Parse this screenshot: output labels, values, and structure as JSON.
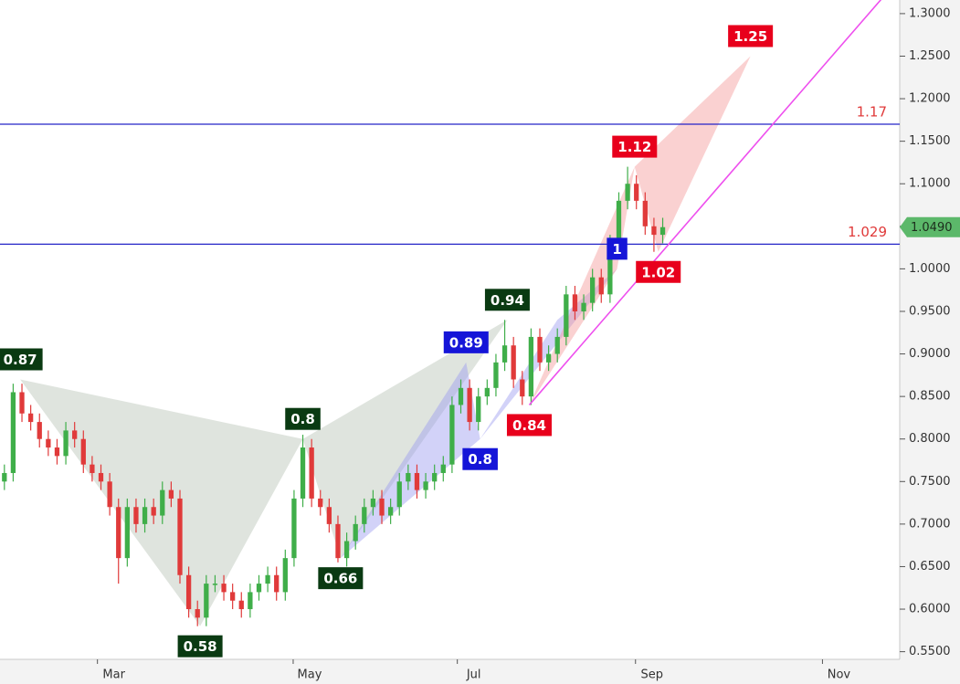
{
  "chart_data": {
    "type": "candlestick",
    "up_color": "#3fae49",
    "down_color": "#e03a3a",
    "xlim": [
      -0.5,
      102
    ],
    "ylim": [
      0.541,
      1.316
    ],
    "xticks": [
      {
        "value": 10.6,
        "label": "Mar"
      },
      {
        "value": 32.9,
        "label": "May"
      },
      {
        "value": 51.6,
        "label": "Jul"
      },
      {
        "value": 71.9,
        "label": "Sep"
      },
      {
        "value": 93.2,
        "label": "Nov"
      }
    ],
    "yticks": [
      {
        "value": 1.3,
        "label": "1.3000"
      },
      {
        "value": 1.25,
        "label": "1.2500"
      },
      {
        "value": 1.2,
        "label": "1.2000"
      },
      {
        "value": 1.15,
        "label": "1.1500"
      },
      {
        "value": 1.1,
        "label": "1.1000"
      },
      {
        "value": 1.05,
        "label": "1.0500"
      },
      {
        "value": 1.0,
        "label": "1.0000"
      },
      {
        "value": 0.95,
        "label": "0.9500"
      },
      {
        "value": 0.9,
        "label": "0.9000"
      },
      {
        "value": 0.85,
        "label": "0.8500"
      },
      {
        "value": 0.8,
        "label": "0.8000"
      },
      {
        "value": 0.75,
        "label": "0.7500"
      },
      {
        "value": 0.7,
        "label": "0.7000"
      },
      {
        "value": 0.65,
        "label": "0.6500"
      },
      {
        "value": 0.6,
        "label": "0.6000"
      },
      {
        "value": 0.55,
        "label": "0.5500"
      }
    ],
    "open": [
      0.75,
      0.76,
      0.855,
      0.83,
      0.82,
      0.8,
      0.79,
      0.78,
      0.81,
      0.8,
      0.77,
      0.76,
      0.75,
      0.72,
      0.66,
      0.72,
      0.7,
      0.72,
      0.71,
      0.74,
      0.73,
      0.64,
      0.6,
      0.59,
      0.63,
      0.63,
      0.62,
      0.61,
      0.6,
      0.62,
      0.63,
      0.64,
      0.62,
      0.66,
      0.73,
      0.79,
      0.73,
      0.72,
      0.7,
      0.66,
      0.68,
      0.7,
      0.72,
      0.73,
      0.71,
      0.72,
      0.75,
      0.76,
      0.74,
      0.75,
      0.76,
      0.77,
      0.84,
      0.86,
      0.82,
      0.85,
      0.86,
      0.89,
      0.91,
      0.87,
      0.85,
      0.92,
      0.89,
      0.9,
      0.92,
      0.97,
      0.95,
      0.96,
      0.99,
      0.97,
      1.03,
      1.08,
      1.1,
      1.08,
      1.05,
      1.04
    ],
    "high": [
      0.77,
      0.865,
      0.865,
      0.84,
      0.83,
      0.81,
      0.8,
      0.82,
      0.82,
      0.81,
      0.78,
      0.77,
      0.76,
      0.73,
      0.73,
      0.73,
      0.73,
      0.73,
      0.75,
      0.75,
      0.74,
      0.65,
      0.61,
      0.64,
      0.64,
      0.64,
      0.63,
      0.62,
      0.63,
      0.64,
      0.65,
      0.65,
      0.67,
      0.74,
      0.805,
      0.8,
      0.74,
      0.73,
      0.71,
      0.69,
      0.71,
      0.73,
      0.74,
      0.74,
      0.73,
      0.76,
      0.77,
      0.77,
      0.76,
      0.77,
      0.78,
      0.85,
      0.87,
      0.87,
      0.86,
      0.87,
      0.9,
      0.94,
      0.92,
      0.88,
      0.93,
      0.93,
      0.91,
      0.93,
      0.98,
      0.98,
      0.97,
      1.0,
      1.0,
      1.04,
      1.09,
      1.12,
      1.11,
      1.09,
      1.06,
      1.06
    ],
    "low": [
      0.74,
      0.75,
      0.82,
      0.81,
      0.79,
      0.78,
      0.77,
      0.77,
      0.79,
      0.76,
      0.75,
      0.74,
      0.71,
      0.63,
      0.65,
      0.69,
      0.69,
      0.7,
      0.7,
      0.72,
      0.63,
      0.59,
      0.58,
      0.58,
      0.62,
      0.61,
      0.6,
      0.59,
      0.59,
      0.61,
      0.62,
      0.61,
      0.61,
      0.65,
      0.72,
      0.72,
      0.71,
      0.69,
      0.655,
      0.65,
      0.67,
      0.69,
      0.71,
      0.7,
      0.7,
      0.71,
      0.74,
      0.73,
      0.73,
      0.74,
      0.75,
      0.76,
      0.83,
      0.81,
      0.81,
      0.84,
      0.85,
      0.88,
      0.86,
      0.84,
      0.84,
      0.88,
      0.88,
      0.89,
      0.91,
      0.94,
      0.94,
      0.95,
      0.96,
      0.96,
      1.02,
      1.07,
      1.07,
      1.04,
      1.02,
      1.03
    ],
    "close": [
      0.76,
      0.855,
      0.83,
      0.82,
      0.8,
      0.79,
      0.78,
      0.81,
      0.8,
      0.77,
      0.76,
      0.75,
      0.72,
      0.66,
      0.72,
      0.7,
      0.72,
      0.71,
      0.74,
      0.73,
      0.64,
      0.6,
      0.59,
      0.63,
      0.63,
      0.62,
      0.61,
      0.6,
      0.62,
      0.63,
      0.64,
      0.62,
      0.66,
      0.73,
      0.79,
      0.73,
      0.72,
      0.7,
      0.66,
      0.68,
      0.7,
      0.72,
      0.73,
      0.71,
      0.72,
      0.75,
      0.76,
      0.74,
      0.75,
      0.76,
      0.77,
      0.84,
      0.86,
      0.82,
      0.85,
      0.86,
      0.89,
      0.91,
      0.87,
      0.85,
      0.92,
      0.89,
      0.9,
      0.92,
      0.97,
      0.95,
      0.96,
      0.99,
      0.97,
      1.03,
      1.08,
      1.1,
      1.08,
      1.05,
      1.04,
      1.049
    ],
    "patterns": [
      {
        "fill": "#b7c4b5",
        "points": [
          {
            "x": 1.8,
            "value": 0.87,
            "color": "#0a3a12"
          },
          {
            "x": 22.3,
            "value": 0.58,
            "color": "#0a3a12"
          },
          {
            "x": 34,
            "value": 0.8,
            "color": "#0a3a12"
          },
          {
            "x": 38.3,
            "value": 0.66,
            "color": "#0a3a12"
          },
          {
            "x": 57.3,
            "value": 0.94,
            "color": "#0a3a12"
          }
        ]
      },
      {
        "fill": "#9b9cf0",
        "points": [
          {
            "x": 38.3,
            "value": 0.66
          },
          {
            "x": 52.6,
            "value": 0.89,
            "color": "#1515d8"
          },
          {
            "x": 54.2,
            "value": 0.8,
            "color": "#1515d8"
          },
          {
            "x": 63,
            "value": 0.94
          },
          {
            "x": 69.8,
            "value": 1,
            "color": "#1515d8"
          }
        ]
      },
      {
        "fill": "#f59a9a",
        "points": [
          {
            "x": 59.8,
            "value": 0.84,
            "color": "#e8001c"
          },
          {
            "x": 69.8,
            "value": 1
          },
          {
            "x": 71.8,
            "value": 1.12,
            "color": "#e8001c"
          },
          {
            "x": 74.5,
            "value": 1.02,
            "color": "#e8001c"
          },
          {
            "x": 85,
            "value": 1.25,
            "color": "#e8001c"
          }
        ]
      }
    ],
    "hlines": [
      {
        "value": 1.17,
        "color": "#2424c8",
        "label_color": "#e03a3a"
      },
      {
        "value": 1.029,
        "color": "#2424c8",
        "label_color": "#e03a3a"
      }
    ],
    "trendline": {
      "color": "#ee4fee",
      "x": [
        59.8,
        101
      ],
      "values": [
        0.84,
        1.33
      ]
    },
    "last_price": {
      "value": 1.049,
      "label": "1.0490",
      "color": "#5cb86a"
    }
  }
}
